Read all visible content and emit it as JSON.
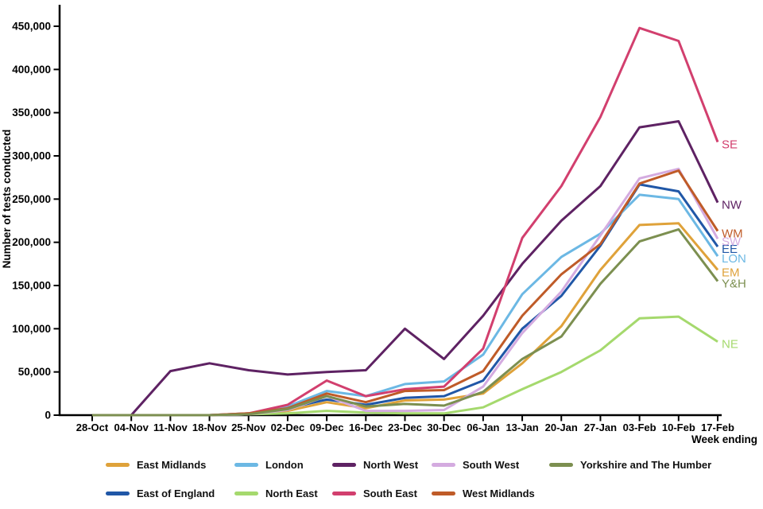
{
  "chart_data": {
    "type": "line",
    "title": "",
    "ylabel": "Number of tests conducted",
    "xlabel": "Week ending",
    "ylim": [
      0,
      450000
    ],
    "yticks": [
      0,
      50000,
      100000,
      150000,
      200000,
      250000,
      300000,
      350000,
      400000,
      450000
    ],
    "grid": false,
    "legend_position": "bottom",
    "categories": [
      "28-Oct",
      "04-Nov",
      "11-Nov",
      "18-Nov",
      "25-Nov",
      "02-Dec",
      "09-Dec",
      "16-Dec",
      "23-Dec",
      "30-Dec",
      "06-Jan",
      "13-Jan",
      "20-Jan",
      "27-Jan",
      "03-Feb",
      "10-Feb",
      "17-Feb"
    ],
    "series": [
      {
        "name": "East Midlands",
        "end_label": "EM",
        "color": "#dfa23a",
        "values": [
          0,
          0,
          0,
          0,
          1000,
          5000,
          15000,
          8000,
          17000,
          18000,
          25000,
          60000,
          103000,
          168000,
          220000,
          222000,
          168000
        ]
      },
      {
        "name": "East of England",
        "end_label": "EE",
        "color": "#2057a7",
        "values": [
          0,
          0,
          0,
          0,
          1000,
          8000,
          18000,
          12000,
          20000,
          22000,
          40000,
          100000,
          138000,
          196000,
          267000,
          259000,
          195000
        ]
      },
      {
        "name": "London",
        "end_label": "LON",
        "color": "#6cb8e4",
        "values": [
          0,
          0,
          0,
          0,
          2000,
          10000,
          28000,
          22000,
          36000,
          39000,
          70000,
          140000,
          183000,
          210000,
          255000,
          250000,
          184000
        ]
      },
      {
        "name": "North East",
        "end_label": "NE",
        "color": "#a5d96d",
        "values": [
          0,
          0,
          0,
          0,
          1000,
          2000,
          5000,
          3000,
          2000,
          2000,
          9000,
          30000,
          50000,
          75000,
          112000,
          114000,
          85000
        ]
      },
      {
        "name": "North West",
        "end_label": "NW",
        "color": "#5e2263",
        "values": [
          0,
          0,
          51000,
          60000,
          52000,
          47000,
          50000,
          52000,
          100000,
          65000,
          115000,
          175000,
          225000,
          265000,
          333000,
          340000,
          246000
        ]
      },
      {
        "name": "South East",
        "end_label": "SE",
        "color": "#d23f6e",
        "values": [
          0,
          0,
          0,
          0,
          2000,
          12000,
          40000,
          22000,
          30000,
          33000,
          77000,
          205000,
          265000,
          345000,
          448000,
          433000,
          316000
        ]
      },
      {
        "name": "South West",
        "end_label": "SW",
        "color": "#d4abe0",
        "values": [
          0,
          0,
          0,
          0,
          1000,
          6000,
          22000,
          5000,
          5000,
          6000,
          33000,
          95000,
          143000,
          208000,
          274000,
          285000,
          204000
        ]
      },
      {
        "name": "West Midlands",
        "end_label": "WM",
        "color": "#bf5b28",
        "values": [
          0,
          0,
          0,
          0,
          2000,
          8000,
          25000,
          15000,
          28000,
          29000,
          51000,
          115000,
          163000,
          198000,
          268000,
          283000,
          213000
        ]
      },
      {
        "name": "Yorkshire and The Humber",
        "end_label": "Y&H",
        "color": "#7c8f50",
        "values": [
          0,
          0,
          0,
          0,
          1000,
          7000,
          22000,
          10000,
          13000,
          11000,
          27000,
          65000,
          91000,
          152000,
          201000,
          215000,
          155000
        ]
      }
    ]
  },
  "legend": {
    "rows": [
      [
        "East Midlands",
        "London",
        "North West",
        "South West",
        "Yorkshire and The Humber"
      ],
      [
        "East of England",
        "North East",
        "South East",
        "West Midlands"
      ]
    ]
  },
  "axis": {
    "color": "#000000"
  }
}
